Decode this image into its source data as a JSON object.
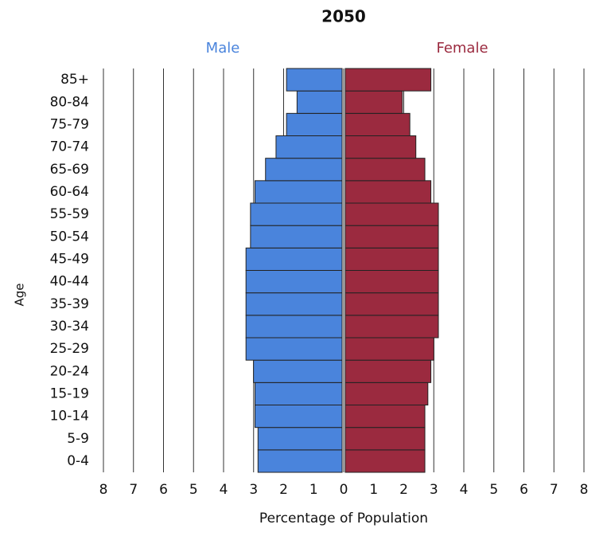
{
  "chart_data": {
    "type": "pyramid",
    "title": "2050",
    "categories": [
      "0-4",
      "5-9",
      "10-14",
      "15-19",
      "20-24",
      "25-29",
      "30-34",
      "35-39",
      "40-44",
      "45-49",
      "50-54",
      "55-59",
      "60-64",
      "65-69",
      "70-74",
      "75-79",
      "80-84",
      "85+"
    ],
    "series": [
      {
        "name": "Male",
        "color": "#4a84dc",
        "label_color": "#4a84dc",
        "values": [
          -2.8,
          -2.8,
          -2.9,
          -2.9,
          -2.95,
          -3.2,
          -3.2,
          -3.2,
          -3.2,
          -3.2,
          -3.05,
          -3.05,
          -2.9,
          -2.55,
          -2.2,
          -1.85,
          -1.5,
          -1.85
        ]
      },
      {
        "name": "Female",
        "color": "#9b2a3f",
        "label_color": "#9b2a3f",
        "values": [
          2.65,
          2.65,
          2.65,
          2.75,
          2.85,
          2.95,
          3.1,
          3.1,
          3.1,
          3.1,
          3.1,
          3.1,
          2.85,
          2.65,
          2.35,
          2.15,
          1.9,
          2.85
        ]
      }
    ],
    "xlim": [
      -8,
      8
    ],
    "xticks": [
      {
        "value": -8,
        "label": "8"
      },
      {
        "value": -7,
        "label": "7"
      },
      {
        "value": -6,
        "label": "6"
      },
      {
        "value": -5,
        "label": "5"
      },
      {
        "value": -4,
        "label": "4"
      },
      {
        "value": -3,
        "label": "3"
      },
      {
        "value": -2,
        "label": "2"
      },
      {
        "value": -1,
        "label": "1"
      },
      0,
      1,
      2,
      3,
      4,
      5,
      6,
      7,
      8
    ],
    "x_label": "Percentage of Population",
    "y_label": "Age",
    "grid": true
  }
}
